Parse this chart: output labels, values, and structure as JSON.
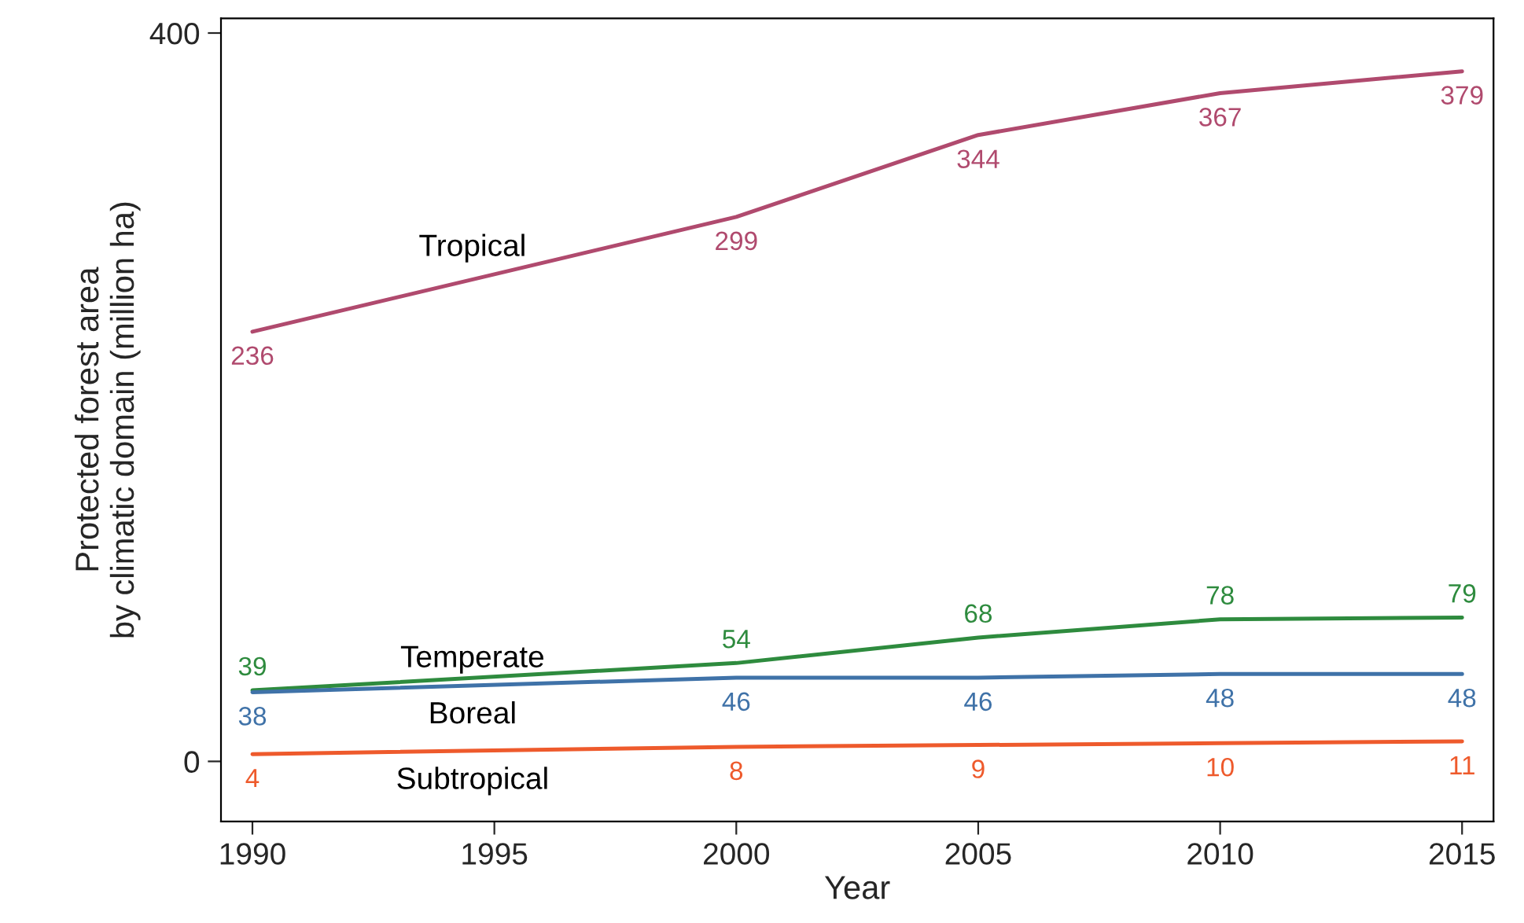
{
  "chart_data": {
    "type": "line",
    "xlabel": "Year",
    "ylabel": "Protected forest area\nby climatic domain (million ha)",
    "x": [
      1990,
      2000,
      2005,
      2010,
      2015
    ],
    "series": [
      {
        "name": "Tropical",
        "color": "#b04a6e",
        "values": [
          236,
          299,
          344,
          367,
          379
        ]
      },
      {
        "name": "Temperate",
        "color": "#2e8b3e",
        "values": [
          39,
          54,
          68,
          78,
          79
        ]
      },
      {
        "name": "Boreal",
        "color": "#3f72a8",
        "values": [
          38,
          46,
          46,
          48,
          48
        ]
      },
      {
        "name": "Subtropical",
        "color": "#ee5a2c",
        "values": [
          4,
          8,
          9,
          10,
          11
        ]
      }
    ],
    "xlim": [
      1989.35,
      2015.65
    ],
    "ylim": [
      -33,
      408
    ],
    "xticks": [
      1990,
      1995,
      2000,
      2005,
      2010,
      2015
    ],
    "yticks": [
      0,
      400
    ],
    "data_labels": true,
    "grid": false,
    "marker": "none",
    "line_style": "solid"
  }
}
